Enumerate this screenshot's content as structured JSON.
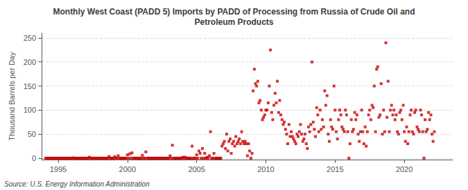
{
  "chart_data": {
    "type": "scatter",
    "title": "Monthly West Coast (PADD 5) Imports by PADD of Processing from Russia of Crude Oil and\nPetroleum Products",
    "ylabel": "Thousand Barrels per Day",
    "source": "Source: U.S. Energy Information Administration",
    "color": "#cc0000",
    "marker": "square",
    "grid": true,
    "xlim": [
      1993.8,
      2023.5
    ],
    "ylim": [
      -3,
      260
    ],
    "xticks": [
      1995,
      2000,
      2005,
      2010,
      2015,
      2020
    ],
    "yticks": [
      0,
      50,
      100,
      150,
      200,
      250
    ],
    "x": [
      1994.08,
      1994.17,
      1994.25,
      1994.33,
      1994.42,
      1994.5,
      1994.58,
      1994.67,
      1994.75,
      1994.83,
      1994.92,
      1995.0,
      1995.08,
      1995.17,
      1995.25,
      1995.33,
      1995.42,
      1995.5,
      1995.58,
      1995.67,
      1995.75,
      1995.83,
      1995.92,
      1996.0,
      1996.08,
      1996.17,
      1996.25,
      1996.33,
      1996.42,
      1996.5,
      1996.58,
      1996.67,
      1996.75,
      1996.83,
      1996.92,
      1997.0,
      1997.08,
      1997.17,
      1997.25,
      1997.33,
      1997.42,
      1997.5,
      1997.58,
      1997.67,
      1997.75,
      1997.83,
      1997.92,
      1998.0,
      1998.08,
      1998.17,
      1998.25,
      1998.33,
      1998.42,
      1998.5,
      1998.58,
      1998.67,
      1998.75,
      1998.83,
      1998.92,
      1999.0,
      1999.08,
      1999.17,
      1999.25,
      1999.33,
      1999.42,
      1999.5,
      1999.58,
      1999.67,
      1999.75,
      1999.83,
      1999.92,
      2000.0,
      2000.08,
      2000.17,
      2000.25,
      2000.33,
      2000.42,
      2000.5,
      2000.58,
      2000.67,
      2000.75,
      2000.83,
      2000.92,
      2001.0,
      2001.08,
      2001.17,
      2001.25,
      2001.33,
      2001.42,
      2001.5,
      2001.58,
      2001.67,
      2001.75,
      2001.83,
      2001.92,
      2002.0,
      2002.08,
      2002.17,
      2002.25,
      2002.33,
      2002.42,
      2002.5,
      2002.58,
      2002.67,
      2002.75,
      2002.83,
      2002.92,
      2003.0,
      2003.08,
      2003.17,
      2003.25,
      2003.33,
      2003.42,
      2003.5,
      2003.58,
      2003.67,
      2003.75,
      2003.83,
      2003.92,
      2004.0,
      2004.08,
      2004.17,
      2004.25,
      2004.33,
      2004.42,
      2004.5,
      2004.58,
      2004.67,
      2004.75,
      2004.83,
      2004.92,
      2005.0,
      2005.08,
      2005.17,
      2005.25,
      2005.33,
      2005.42,
      2005.5,
      2005.58,
      2005.67,
      2005.75,
      2005.83,
      2005.92,
      2006.0,
      2006.08,
      2006.17,
      2006.25,
      2006.33,
      2006.42,
      2006.5,
      2006.58,
      2006.67,
      2006.75,
      2006.83,
      2006.92,
      2007.0,
      2007.08,
      2007.17,
      2007.25,
      2007.33,
      2007.42,
      2007.5,
      2007.58,
      2007.67,
      2007.75,
      2007.83,
      2007.92,
      2008.0,
      2008.08,
      2008.17,
      2008.25,
      2008.33,
      2008.42,
      2008.5,
      2008.58,
      2008.67,
      2008.75,
      2008.83,
      2008.92,
      2009.0,
      2009.08,
      2009.17,
      2009.25,
      2009.33,
      2009.42,
      2009.5,
      2009.58,
      2009.67,
      2009.75,
      2009.83,
      2009.92,
      2010.0,
      2010.08,
      2010.17,
      2010.25,
      2010.33,
      2010.42,
      2010.5,
      2010.58,
      2010.67,
      2010.75,
      2010.83,
      2010.92,
      2011.0,
      2011.08,
      2011.17,
      2011.25,
      2011.33,
      2011.42,
      2011.5,
      2011.58,
      2011.67,
      2011.75,
      2011.83,
      2011.92,
      2012.0,
      2012.08,
      2012.17,
      2012.25,
      2012.33,
      2012.42,
      2012.5,
      2012.58,
      2012.67,
      2012.75,
      2012.83,
      2012.92,
      2013.0,
      2013.08,
      2013.17,
      2013.25,
      2013.33,
      2013.42,
      2013.5,
      2013.58,
      2013.67,
      2013.75,
      2013.83,
      2013.92,
      2014.0,
      2014.08,
      2014.17,
      2014.25,
      2014.33,
      2014.42,
      2014.5,
      2014.58,
      2014.67,
      2014.75,
      2014.83,
      2014.92,
      2015.0,
      2015.08,
      2015.17,
      2015.25,
      2015.33,
      2015.42,
      2015.5,
      2015.58,
      2015.67,
      2015.75,
      2015.83,
      2015.92,
      2016.0,
      2016.08,
      2016.17,
      2016.25,
      2016.33,
      2016.42,
      2016.5,
      2016.58,
      2016.67,
      2016.75,
      2016.83,
      2016.92,
      2017.0,
      2017.08,
      2017.17,
      2017.25,
      2017.33,
      2017.42,
      2017.5,
      2017.58,
      2017.67,
      2017.75,
      2017.83,
      2017.92,
      2018.0,
      2018.08,
      2018.17,
      2018.25,
      2018.33,
      2018.42,
      2018.5,
      2018.58,
      2018.67,
      2018.75,
      2018.83,
      2018.92,
      2019.0,
      2019.08,
      2019.17,
      2019.25,
      2019.33,
      2019.42,
      2019.5,
      2019.58,
      2019.67,
      2019.75,
      2019.83,
      2019.92,
      2020.0,
      2020.08,
      2020.17,
      2020.25,
      2020.33,
      2020.42,
      2020.5,
      2020.58,
      2020.67,
      2020.75,
      2020.83,
      2020.92,
      2021.0,
      2021.08,
      2021.17,
      2021.25,
      2021.33,
      2021.42,
      2021.5,
      2021.58,
      2021.67,
      2021.75,
      2021.83,
      2021.92,
      2022.0,
      2022.08,
      2022.17
    ],
    "values": [
      0,
      0,
      0,
      0,
      0,
      0,
      0,
      0,
      0,
      0,
      0,
      0,
      0,
      0,
      0,
      0,
      0,
      0,
      0,
      0,
      0,
      0,
      0,
      0,
      0.5,
      0,
      0,
      0,
      0,
      0,
      0,
      0,
      0,
      0,
      0,
      0,
      0,
      0,
      2.0,
      0,
      0,
      0,
      0,
      0,
      0,
      0,
      0,
      0,
      0,
      0,
      0,
      0,
      0,
      0,
      0,
      3.5,
      0,
      0,
      0,
      0,
      3.0,
      0,
      0,
      5.0,
      0,
      0,
      0,
      0,
      0,
      0,
      0,
      7.0,
      0,
      9.0,
      0,
      11.0,
      0,
      0,
      0,
      0,
      0,
      0,
      0,
      0,
      6.0,
      0,
      0,
      13.0,
      0,
      0,
      0,
      0,
      0,
      0,
      0,
      0,
      0,
      0,
      0,
      0,
      0,
      0,
      0,
      0,
      0,
      0,
      0,
      0,
      5.0,
      0,
      27.0,
      0,
      0,
      0,
      0,
      0,
      0,
      0,
      0,
      2.0,
      0,
      2.0,
      0,
      0,
      0,
      0,
      0,
      25.0,
      0,
      0,
      0,
      7.0,
      0,
      15.0,
      10.0,
      0,
      20.0,
      0,
      10.0,
      0,
      2.0,
      0,
      5.0,
      55.0,
      0,
      0,
      10.0,
      0,
      0,
      0,
      0,
      0,
      0,
      25.0,
      30.0,
      35.0,
      20.0,
      50.0,
      15.0,
      35.0,
      40.0,
      10.0,
      30.0,
      35.0,
      25.0,
      45.0,
      30.0,
      35.0,
      40.0,
      30.0,
      55.0,
      35.0,
      30.0,
      35.0,
      30.0,
      5.0,
      30.0,
      15.0,
      0,
      10.0,
      140.0,
      185.0,
      155.0,
      150.0,
      160.0,
      115.0,
      120.0,
      100.0,
      80.0,
      85.0,
      90.0,
      100.0,
      100.0,
      115.0,
      150.0,
      225.0,
      95.0,
      80.0,
      110.0,
      135.0,
      115.0,
      160.0,
      95.0,
      120.0,
      90.0,
      80.0,
      70.0,
      75.0,
      60.0,
      50.0,
      30.0,
      70.0,
      45.0,
      55.0,
      45.0,
      40.0,
      35.0,
      30.0,
      50.0,
      45.0,
      55.0,
      70.0,
      50.0,
      35.0,
      40.0,
      50.0,
      30.0,
      20.0,
      65.0,
      55.0,
      70.0,
      200.0,
      75.0,
      60.0,
      45.0,
      105.0,
      90.0,
      55.0,
      100.0,
      60.0,
      80.0,
      65.0,
      140.0,
      110.0,
      130.0,
      50.0,
      35.0,
      80.0,
      65.0,
      60.0,
      150.0,
      100.0,
      55.0,
      40.0,
      80.0,
      100.0,
      90.0,
      65.0,
      60.0,
      55.0,
      100.0,
      90.0,
      55.0,
      0.0,
      30.0,
      80.0,
      55.0,
      60.0,
      95.0,
      80.0,
      90.0,
      50.0,
      35.0,
      55.0,
      100.0,
      55.0,
      30.0,
      65.0,
      25.0,
      55.0,
      90.0,
      100.0,
      80.0,
      110.0,
      105.0,
      150.0,
      55.0,
      185.0,
      190.0,
      85.0,
      90.0,
      155.0,
      50.0,
      100.0,
      55.0,
      240.0,
      85.0,
      160.0,
      55.0,
      100.0,
      110.0,
      90.0,
      100.0,
      80.0,
      90.0,
      55.0,
      50.0,
      95.0,
      100.0,
      80.0,
      110.0,
      55.0,
      35.0,
      65.0,
      30.0,
      55.0,
      90.0,
      100.0,
      55.0,
      50.0,
      95.0,
      100.0,
      65.0,
      60.0,
      55.0,
      100.0,
      90.0,
      55.0,
      0.0,
      80.0,
      55.0,
      60.0,
      95.0,
      80.0,
      90.0,
      50.0,
      35.0,
      55.0
    ]
  }
}
